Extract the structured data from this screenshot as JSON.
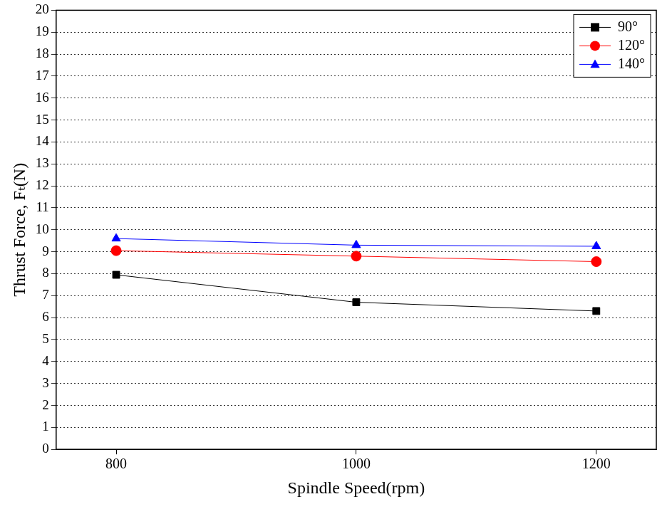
{
  "chart_data": {
    "type": "line",
    "x_label": "Spindle Speed(rpm)",
    "y_label": "Thrust Force, Fₜ(N)",
    "x": [
      800,
      1000,
      1200
    ],
    "series": [
      {
        "name": "90°",
        "color": "#000000",
        "marker": "square",
        "values": [
          7.95,
          6.7,
          6.3
        ]
      },
      {
        "name": "120°",
        "color": "#ff0000",
        "marker": "circle",
        "values": [
          9.05,
          8.8,
          8.55
        ]
      },
      {
        "name": "140°",
        "color": "#0000ff",
        "marker": "triangle",
        "values": [
          9.6,
          9.3,
          9.25
        ]
      }
    ],
    "xlim": [
      750,
      1250
    ],
    "xticks": [
      800,
      1000,
      1200
    ],
    "ylim": [
      0,
      20
    ],
    "yticks": [
      0,
      1,
      2,
      3,
      4,
      5,
      6,
      7,
      8,
      9,
      10,
      11,
      12,
      13,
      14,
      15,
      16,
      17,
      18,
      19,
      20
    ],
    "grid": true,
    "legend": "upper right"
  }
}
